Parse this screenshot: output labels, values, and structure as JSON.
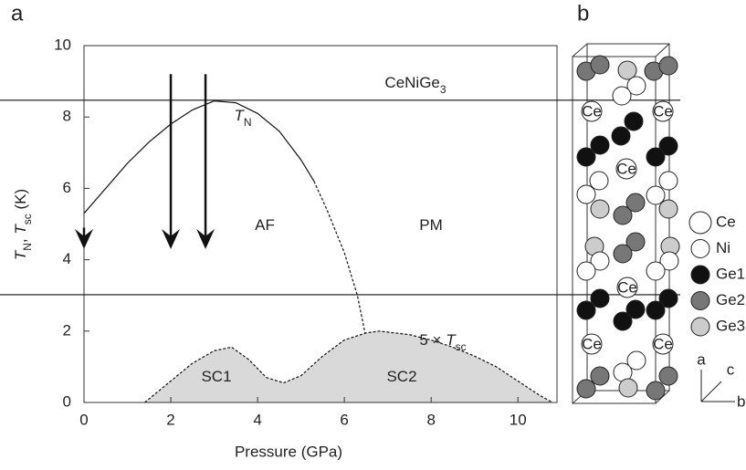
{
  "chart_data": {
    "type": "line",
    "panel_labels": [
      "a",
      "b"
    ],
    "x_label": "Pressure (GPa)",
    "y_label": [
      {
        "text": "T"
      },
      {
        "text": "N",
        "sub": true
      },
      {
        "text": ", "
      },
      {
        "text": "T"
      },
      {
        "text": "sc",
        "sub": true
      },
      {
        "text": " (K)"
      }
    ],
    "xlim": [
      0,
      10.9
    ],
    "ylim": [
      0,
      10
    ],
    "xticks": [
      0,
      2,
      4,
      6,
      8,
      10
    ],
    "yticks": [
      0,
      2,
      4,
      6,
      8,
      10
    ],
    "hlines": [
      8.47,
      3.02
    ],
    "series": [
      {
        "color": "#111111",
        "style": "solid",
        "x": [
          0,
          0.5,
          1,
          1.5,
          2,
          2.5,
          3,
          3.5,
          4,
          4.5,
          5,
          5.3
        ],
        "values": [
          5.3,
          6.0,
          6.7,
          7.3,
          7.8,
          8.2,
          8.45,
          8.4,
          8.1,
          7.6,
          6.8,
          6.2
        ]
      },
      {
        "color": "#111111",
        "style": "dashed",
        "x": [
          5.3,
          5.6,
          6.0,
          6.3,
          6.5,
          6.6,
          6.7
        ],
        "values": [
          6.2,
          5.4,
          4.2,
          3.0,
          1.8,
          1.0,
          0
        ]
      },
      {
        "color": "#111111",
        "style": "dashed",
        "fill": "#d9d9d9",
        "x": [
          1.4,
          2,
          2.5,
          3,
          3.4,
          3.8,
          4.2,
          4.6,
          5,
          5.5,
          6,
          6.5,
          6.8,
          7.5,
          8,
          8.5,
          9,
          9.5,
          10,
          10.5,
          10.8
        ],
        "values": [
          0,
          0.6,
          1.1,
          1.45,
          1.55,
          1.2,
          0.7,
          0.55,
          0.75,
          1.3,
          1.75,
          1.95,
          2.0,
          1.9,
          1.75,
          1.55,
          1.3,
          1.0,
          0.6,
          0.2,
          0
        ]
      }
    ],
    "arrows": [
      {
        "x": 0,
        "y1": 4.9,
        "y2": 4.3
      },
      {
        "x": 2,
        "y1": 9.2,
        "y2": 4.3
      },
      {
        "x": 2.8,
        "y1": 9.2,
        "y2": 4.3
      }
    ],
    "annotations": [
      {
        "parts": [
          {
            "text": "CeNiGe"
          },
          {
            "text": "3",
            "sub": true
          }
        ]
      },
      {
        "parts": [
          {
            "text": "T"
          },
          {
            "text": "N",
            "sub": true
          }
        ]
      },
      {
        "parts": [
          {
            "text": "AF"
          }
        ]
      },
      {
        "parts": [
          {
            "text": "PM"
          }
        ]
      },
      {
        "parts": [
          {
            "text": "SC1"
          }
        ]
      },
      {
        "parts": [
          {
            "text": "SC2"
          }
        ]
      },
      {
        "parts": [
          {
            "text": "5 × "
          },
          {
            "text": "T"
          },
          {
            "text": "sc",
            "sub": true
          }
        ]
      }
    ]
  },
  "structure": {
    "atom_label": "Ce",
    "legend": [
      {
        "label": "Ce"
      },
      {
        "label": "Ni"
      },
      {
        "label": "Ge1"
      },
      {
        "label": "Ge2"
      },
      {
        "label": "Ge3"
      }
    ],
    "axes": [
      "a",
      "c",
      "b"
    ]
  }
}
